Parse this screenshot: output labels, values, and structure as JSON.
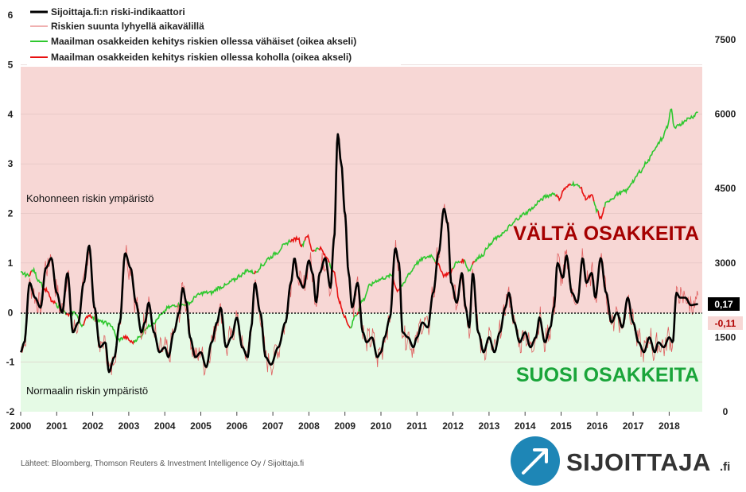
{
  "chart_data": {
    "type": "line",
    "x_categories": [
      "2000",
      "2001",
      "2002",
      "2003",
      "2004",
      "2005",
      "2006",
      "2007",
      "2008",
      "2009",
      "2010",
      "2011",
      "2012",
      "2013",
      "2014",
      "2015",
      "2016",
      "2017",
      "2018"
    ],
    "y_left_ticks": [
      "6",
      "5",
      "4",
      "3",
      "2",
      "1",
      "0",
      "-1",
      "-2"
    ],
    "y_left_range": [
      -2,
      6
    ],
    "y_right_ticks": [
      "7500",
      "6000",
      "4500",
      "3000",
      "1500",
      "0"
    ],
    "y_right_range": [
      0,
      7500
    ],
    "legend": [
      {
        "label": "Sijoittaja.fi:n riski-indikaattori",
        "color": "#000000"
      },
      {
        "label": "Riskien suunta lyhyellä aikavälillä",
        "color": "#e06060"
      },
      {
        "label": "Maailman osakkeiden kehitys riskien ollessa vähäiset (oikea akseli)",
        "color": "#2ec82e"
      },
      {
        "label": "Maailman osakkeiden kehitys riskien ollessa koholla (oikea akseli)",
        "color": "#e81010"
      }
    ],
    "zone_labels": {
      "elevated": "Kohonneen riskin ympäristö",
      "normal": "Normaalin riskin ympäristö"
    },
    "action_labels": {
      "avoid": "VÄLTÄ OSAKKEITA",
      "favor": "SUOSI OSAKKEITA"
    },
    "end_values": {
      "risk_indicator": "0,17",
      "short_term_direction": "-0,11"
    },
    "risk_indicator": {
      "start_year": 2000,
      "end_year": 2018.8,
      "keypoints": [
        [
          2000.0,
          -0.8
        ],
        [
          2000.1,
          -0.6
        ],
        [
          2000.25,
          0.6
        ],
        [
          2000.4,
          0.3
        ],
        [
          2000.55,
          0.1
        ],
        [
          2000.7,
          0.9
        ],
        [
          2000.85,
          1.1
        ],
        [
          2001.0,
          0.4
        ],
        [
          2001.15,
          0.0
        ],
        [
          2001.3,
          0.8
        ],
        [
          2001.45,
          -0.4
        ],
        [
          2001.6,
          -0.2
        ],
        [
          2001.75,
          0.6
        ],
        [
          2001.9,
          1.35
        ],
        [
          2002.05,
          0.1
        ],
        [
          2002.2,
          -0.7
        ],
        [
          2002.35,
          -0.6
        ],
        [
          2002.45,
          -1.2
        ],
        [
          2002.6,
          -0.9
        ],
        [
          2002.75,
          -0.2
        ],
        [
          2002.9,
          1.2
        ],
        [
          2003.05,
          0.9
        ],
        [
          2003.2,
          0.2
        ],
        [
          2003.35,
          -0.4
        ],
        [
          2003.45,
          -0.2
        ],
        [
          2003.55,
          0.2
        ],
        [
          2003.7,
          -0.4
        ],
        [
          2003.85,
          -0.8
        ],
        [
          2004.0,
          -0.7
        ],
        [
          2004.1,
          -0.9
        ],
        [
          2004.25,
          -0.4
        ],
        [
          2004.4,
          0.0
        ],
        [
          2004.5,
          0.5
        ],
        [
          2004.6,
          0.2
        ],
        [
          2004.7,
          -0.5
        ],
        [
          2004.85,
          -0.9
        ],
        [
          2005.0,
          -0.8
        ],
        [
          2005.15,
          -1.1
        ],
        [
          2005.3,
          -0.6
        ],
        [
          2005.45,
          -0.2
        ],
        [
          2005.55,
          0.1
        ],
        [
          2005.7,
          -0.7
        ],
        [
          2005.85,
          -0.5
        ],
        [
          2006.0,
          -0.1
        ],
        [
          2006.15,
          -0.7
        ],
        [
          2006.3,
          -0.9
        ],
        [
          2006.4,
          -0.3
        ],
        [
          2006.5,
          0.6
        ],
        [
          2006.65,
          0.0
        ],
        [
          2006.8,
          -0.9
        ],
        [
          2006.95,
          -1.05
        ],
        [
          2007.15,
          -0.7
        ],
        [
          2007.35,
          -0.2
        ],
        [
          2007.5,
          0.6
        ],
        [
          2007.6,
          1.1
        ],
        [
          2007.7,
          0.7
        ],
        [
          2007.85,
          0.5
        ],
        [
          2008.0,
          1.05
        ],
        [
          2008.1,
          0.8
        ],
        [
          2008.2,
          0.2
        ],
        [
          2008.3,
          0.8
        ],
        [
          2008.45,
          1.1
        ],
        [
          2008.6,
          0.5
        ],
        [
          2008.7,
          1.5
        ],
        [
          2008.8,
          3.6
        ],
        [
          2008.9,
          3.0
        ],
        [
          2009.0,
          2.0
        ],
        [
          2009.1,
          0.8
        ],
        [
          2009.2,
          0.1
        ],
        [
          2009.35,
          0.6
        ],
        [
          2009.5,
          -0.4
        ],
        [
          2009.6,
          -0.6
        ],
        [
          2009.75,
          -0.5
        ],
        [
          2009.9,
          -0.9
        ],
        [
          2010.0,
          -0.8
        ],
        [
          2010.1,
          -0.5
        ],
        [
          2010.25,
          -0.1
        ],
        [
          2010.4,
          1.3
        ],
        [
          2010.5,
          1.0
        ],
        [
          2010.6,
          -0.4
        ],
        [
          2010.75,
          -0.5
        ],
        [
          2010.9,
          -0.7
        ],
        [
          2011.0,
          -0.5
        ],
        [
          2011.15,
          -0.2
        ],
        [
          2011.3,
          -0.3
        ],
        [
          2011.45,
          0.4
        ],
        [
          2011.6,
          1.2
        ],
        [
          2011.75,
          2.1
        ],
        [
          2011.85,
          1.8
        ],
        [
          2011.95,
          0.6
        ],
        [
          2012.1,
          0.2
        ],
        [
          2012.25,
          0.8
        ],
        [
          2012.35,
          0.1
        ],
        [
          2012.45,
          -0.3
        ],
        [
          2012.55,
          0.8
        ],
        [
          2012.7,
          -0.4
        ],
        [
          2012.85,
          -0.8
        ],
        [
          2013.0,
          -0.5
        ],
        [
          2013.15,
          -0.8
        ],
        [
          2013.3,
          -0.4
        ],
        [
          2013.45,
          0.1
        ],
        [
          2013.55,
          0.4
        ],
        [
          2013.7,
          -0.2
        ],
        [
          2013.85,
          -0.6
        ],
        [
          2014.0,
          -0.4
        ],
        [
          2014.15,
          -0.7
        ],
        [
          2014.3,
          -0.5
        ],
        [
          2014.4,
          -0.1
        ],
        [
          2014.55,
          -0.6
        ],
        [
          2014.7,
          -0.3
        ],
        [
          2014.8,
          0.1
        ],
        [
          2014.9,
          1.0
        ],
        [
          2015.05,
          0.7
        ],
        [
          2015.15,
          1.15
        ],
        [
          2015.3,
          0.4
        ],
        [
          2015.45,
          0.2
        ],
        [
          2015.6,
          1.1
        ],
        [
          2015.7,
          0.6
        ],
        [
          2015.85,
          0.8
        ],
        [
          2015.95,
          0.3
        ],
        [
          2016.1,
          1.1
        ],
        [
          2016.25,
          0.4
        ],
        [
          2016.4,
          -0.2
        ],
        [
          2016.55,
          0.0
        ],
        [
          2016.7,
          -0.3
        ],
        [
          2016.85,
          0.3
        ],
        [
          2017.0,
          -0.2
        ],
        [
          2017.15,
          -0.6
        ],
        [
          2017.3,
          -0.8
        ],
        [
          2017.45,
          -0.5
        ],
        [
          2017.6,
          -0.8
        ],
        [
          2017.7,
          -0.6
        ],
        [
          2017.85,
          -0.7
        ],
        [
          2018.0,
          -0.5
        ],
        [
          2018.1,
          -0.6
        ],
        [
          2018.2,
          0.4
        ],
        [
          2018.3,
          0.3
        ],
        [
          2018.45,
          0.3
        ],
        [
          2018.6,
          0.15
        ],
        [
          2018.8,
          0.17
        ]
      ]
    },
    "world_equities": {
      "low_risk_color": "#2ec82e",
      "high_risk_color": "#e81010",
      "keypoints": [
        [
          2000.0,
          2800
        ],
        [
          2000.2,
          2750
        ],
        [
          2000.35,
          2850
        ],
        [
          2000.5,
          2650
        ],
        [
          2000.7,
          2450
        ],
        [
          2000.9,
          2200
        ],
        [
          2001.1,
          2100
        ],
        [
          2001.3,
          1950
        ],
        [
          2001.5,
          2000
        ],
        [
          2001.7,
          1750
        ],
        [
          2001.9,
          1950
        ],
        [
          2002.1,
          1850
        ],
        [
          2002.3,
          1800
        ],
        [
          2002.5,
          1750
        ],
        [
          2002.7,
          1450
        ],
        [
          2002.9,
          1500
        ],
        [
          2003.1,
          1400
        ],
        [
          2003.3,
          1500
        ],
        [
          2003.5,
          1700
        ],
        [
          2003.7,
          1800
        ],
        [
          2003.9,
          1950
        ],
        [
          2004.1,
          2100
        ],
        [
          2004.3,
          2150
        ],
        [
          2004.5,
          2150
        ],
        [
          2004.7,
          2200
        ],
        [
          2004.9,
          2350
        ],
        [
          2005.1,
          2400
        ],
        [
          2005.3,
          2400
        ],
        [
          2005.5,
          2500
        ],
        [
          2005.7,
          2550
        ],
        [
          2005.9,
          2650
        ],
        [
          2006.1,
          2750
        ],
        [
          2006.3,
          2850
        ],
        [
          2006.5,
          2800
        ],
        [
          2006.7,
          2950
        ],
        [
          2006.9,
          3100
        ],
        [
          2007.1,
          3200
        ],
        [
          2007.3,
          3350
        ],
        [
          2007.5,
          3450
        ],
        [
          2007.7,
          3500
        ],
        [
          2007.8,
          3350
        ],
        [
          2007.95,
          3550
        ],
        [
          2008.1,
          3250
        ],
        [
          2008.3,
          3300
        ],
        [
          2008.5,
          3100
        ],
        [
          2008.7,
          2800
        ],
        [
          2008.85,
          2200
        ],
        [
          2009.0,
          1900
        ],
        [
          2009.15,
          1700
        ],
        [
          2009.3,
          1950
        ],
        [
          2009.5,
          2250
        ],
        [
          2009.7,
          2550
        ],
        [
          2009.9,
          2650
        ],
        [
          2010.1,
          2700
        ],
        [
          2010.3,
          2750
        ],
        [
          2010.45,
          2450
        ],
        [
          2010.6,
          2550
        ],
        [
          2010.8,
          2800
        ],
        [
          2011.0,
          3000
        ],
        [
          2011.2,
          3100
        ],
        [
          2011.4,
          3150
        ],
        [
          2011.6,
          2950
        ],
        [
          2011.75,
          2750
        ],
        [
          2011.9,
          2800
        ],
        [
          2012.1,
          3000
        ],
        [
          2012.3,
          3050
        ],
        [
          2012.45,
          2850
        ],
        [
          2012.6,
          3050
        ],
        [
          2012.8,
          3150
        ],
        [
          2013.0,
          3350
        ],
        [
          2013.2,
          3500
        ],
        [
          2013.4,
          3600
        ],
        [
          2013.6,
          3750
        ],
        [
          2013.8,
          3900
        ],
        [
          2014.0,
          4000
        ],
        [
          2014.2,
          4100
        ],
        [
          2014.4,
          4250
        ],
        [
          2014.6,
          4350
        ],
        [
          2014.8,
          4400
        ],
        [
          2014.95,
          4300
        ],
        [
          2015.1,
          4500
        ],
        [
          2015.3,
          4600
        ],
        [
          2015.5,
          4550
        ],
        [
          2015.7,
          4300
        ],
        [
          2015.85,
          4350
        ],
        [
          2016.0,
          4050
        ],
        [
          2016.1,
          3900
        ],
        [
          2016.25,
          4200
        ],
        [
          2016.4,
          4300
        ],
        [
          2016.6,
          4400
        ],
        [
          2016.8,
          4450
        ],
        [
          2017.0,
          4650
        ],
        [
          2017.2,
          4850
        ],
        [
          2017.4,
          5050
        ],
        [
          2017.6,
          5300
        ],
        [
          2017.8,
          5500
        ],
        [
          2017.95,
          5750
        ],
        [
          2018.05,
          6100
        ],
        [
          2018.15,
          5700
        ],
        [
          2018.3,
          5800
        ],
        [
          2018.5,
          5900
        ],
        [
          2018.65,
          5950
        ],
        [
          2018.8,
          6050
        ]
      ]
    },
    "colors": {
      "elevated_zone": "#f7d7d5",
      "normal_zone": "#e5fae5",
      "avoid_label": "#a50000",
      "favor_label": "#1aa53a",
      "short_term_line": "#e06060",
      "indicator_line": "#000000"
    }
  },
  "footer": {
    "source": "Lähteet: Bloomberg, Thomson Reuters & Investment Intelligence Oy / Sijoittaja.fi",
    "brand_name": "SIJOITTAJA",
    "brand_suffix": ".fi"
  }
}
